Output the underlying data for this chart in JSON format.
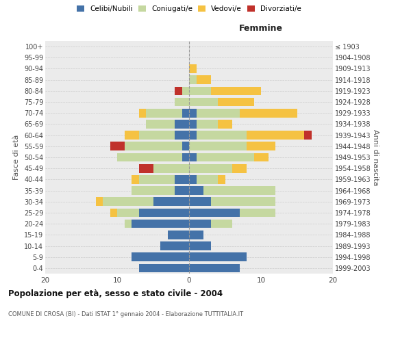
{
  "age_groups": [
    "0-4",
    "5-9",
    "10-14",
    "15-19",
    "20-24",
    "25-29",
    "30-34",
    "35-39",
    "40-44",
    "45-49",
    "50-54",
    "55-59",
    "60-64",
    "65-69",
    "70-74",
    "75-79",
    "80-84",
    "85-89",
    "90-94",
    "95-99",
    "100+"
  ],
  "birth_years": [
    "1999-2003",
    "1994-1998",
    "1989-1993",
    "1984-1988",
    "1979-1983",
    "1974-1978",
    "1969-1973",
    "1964-1968",
    "1959-1963",
    "1954-1958",
    "1949-1953",
    "1944-1948",
    "1939-1943",
    "1934-1938",
    "1929-1933",
    "1924-1928",
    "1919-1923",
    "1914-1918",
    "1909-1913",
    "1904-1908",
    "≤ 1903"
  ],
  "males": {
    "celibi": [
      7,
      8,
      4,
      3,
      8,
      7,
      5,
      2,
      2,
      0,
      1,
      1,
      2,
      2,
      1,
      0,
      0,
      0,
      0,
      0,
      0
    ],
    "coniugati": [
      0,
      0,
      0,
      0,
      1,
      3,
      7,
      6,
      5,
      5,
      9,
      8,
      5,
      4,
      5,
      2,
      1,
      0,
      0,
      0,
      0
    ],
    "vedovi": [
      0,
      0,
      0,
      0,
      0,
      1,
      1,
      0,
      1,
      0,
      0,
      0,
      2,
      0,
      1,
      0,
      0,
      0,
      0,
      0,
      0
    ],
    "divorziati": [
      0,
      0,
      0,
      0,
      0,
      0,
      0,
      0,
      0,
      2,
      0,
      2,
      0,
      0,
      0,
      0,
      1,
      0,
      0,
      0,
      0
    ]
  },
  "females": {
    "nubili": [
      7,
      8,
      3,
      2,
      3,
      7,
      3,
      2,
      1,
      0,
      1,
      0,
      1,
      1,
      1,
      0,
      0,
      0,
      0,
      0,
      0
    ],
    "coniugate": [
      0,
      0,
      0,
      0,
      3,
      5,
      9,
      10,
      3,
      6,
      8,
      8,
      7,
      3,
      6,
      4,
      3,
      1,
      0,
      0,
      0
    ],
    "vedove": [
      0,
      0,
      0,
      0,
      0,
      0,
      0,
      0,
      1,
      2,
      2,
      4,
      8,
      2,
      8,
      5,
      7,
      2,
      1,
      0,
      0
    ],
    "divorziate": [
      0,
      0,
      0,
      0,
      0,
      0,
      0,
      0,
      0,
      0,
      0,
      0,
      1,
      0,
      0,
      0,
      0,
      0,
      0,
      0,
      0
    ]
  },
  "colors": {
    "celibi": "#4472a8",
    "coniugati": "#c5d8a0",
    "vedovi": "#f5c242",
    "divorziati": "#c0312b"
  },
  "xlim": 20,
  "title": "Popolazione per età, sesso e stato civile - 2004",
  "subtitle": "COMUNE DI CROSA (BI) - Dati ISTAT 1° gennaio 2004 - Elaborazione TUTTITALIA.IT",
  "ylabel_left": "Fasce di età",
  "ylabel_right": "Anni di nascita",
  "xlabel_right": "Femmine",
  "background_color": "#ffffff",
  "grid_color": "#cccccc",
  "bar_facecolor": "#ebebeb"
}
